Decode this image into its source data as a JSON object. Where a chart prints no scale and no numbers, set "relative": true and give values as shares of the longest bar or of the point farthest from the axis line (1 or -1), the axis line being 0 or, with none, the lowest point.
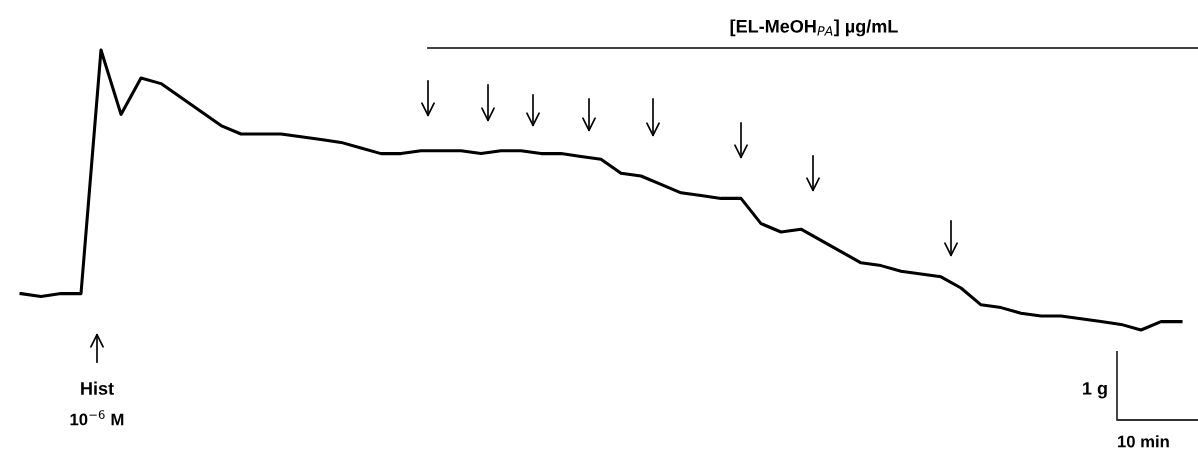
{
  "chart_data": {
    "type": "line",
    "relative": true,
    "title": "[EL-MeOH$_{PA}$] µg/mL",
    "categories": [
      null,
      null,
      null,
      null,
      null,
      null,
      null,
      null,
      null,
      null,
      null,
      null,
      null,
      null,
      null,
      null,
      null,
      null,
      null,
      null,
      null,
      null,
      null,
      null,
      null,
      null,
      null,
      null,
      null,
      null,
      null,
      null,
      null,
      null,
      null,
      null,
      null,
      null,
      null,
      null,
      null,
      null,
      null,
      null,
      null,
      null,
      null,
      null,
      null,
      null,
      null,
      null,
      null,
      null,
      null,
      null,
      null,
      null,
      null
    ],
    "series": [
      {
        "color": "#000000",
        "values": [
          0.13,
          0.12,
          0.13,
          0.13,
          1.0,
          0.77,
          0.9,
          0.88,
          0.83,
          0.78,
          0.73,
          0.7,
          0.7,
          0.7,
          0.69,
          0.68,
          0.67,
          0.65,
          0.63,
          0.63,
          0.64,
          0.64,
          0.64,
          0.63,
          0.64,
          0.64,
          0.63,
          0.63,
          0.62,
          0.61,
          0.56,
          0.55,
          0.52,
          0.49,
          0.48,
          0.47,
          0.47,
          0.38,
          0.35,
          0.36,
          0.32,
          0.28,
          0.24,
          0.23,
          0.21,
          0.2,
          0.19,
          0.15,
          0.09,
          0.08,
          0.06,
          0.05,
          0.05,
          0.04,
          0.03,
          0.02,
          0.0,
          0.03,
          0.03
        ]
      }
    ],
    "annotations": [
      "Hist",
      "10$^{−6}$ M",
      "1 g",
      "10 min"
    ],
    "legend": false
  }
}
